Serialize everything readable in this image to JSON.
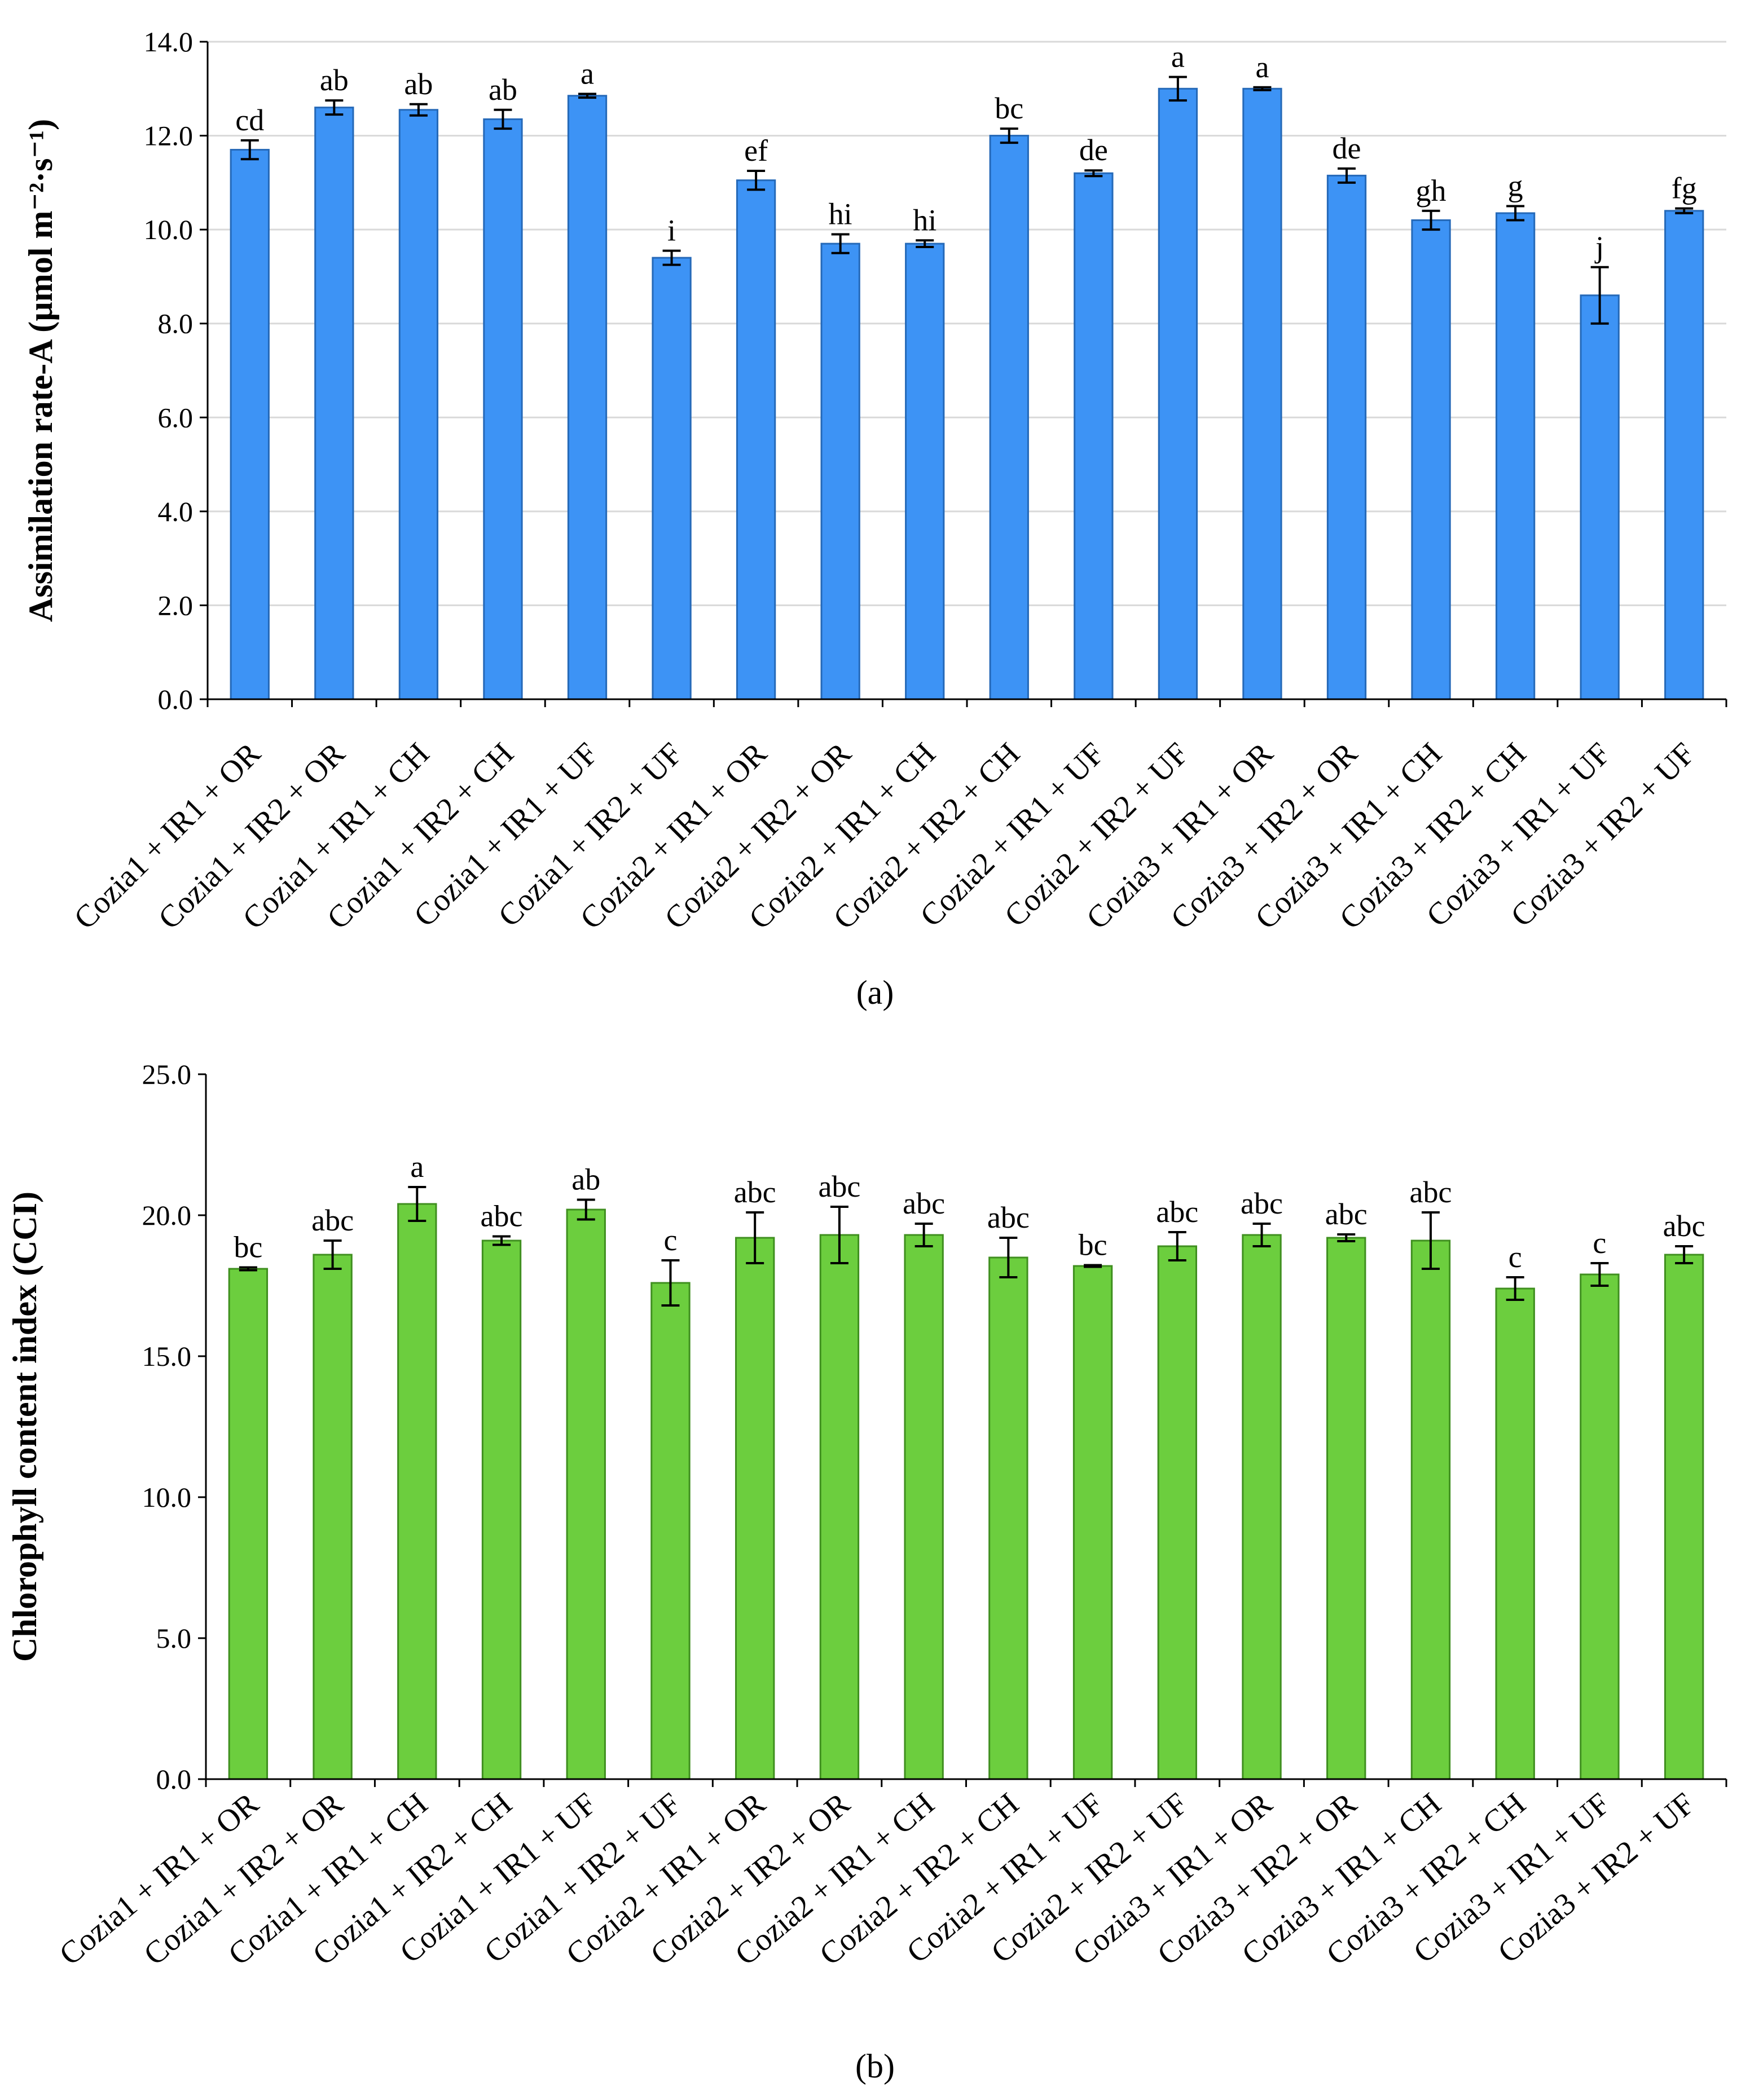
{
  "chart_data": [
    {
      "type": "bar",
      "panel_label": "(a)",
      "title": "",
      "xlabel": "",
      "ylabel": "Assimilation rate-A  (µmol m⁻²·s⁻¹)",
      "ylim": [
        0,
        14
      ],
      "ytick_step": 2,
      "ytick_labels": [
        "0.0",
        "2.0",
        "4.0",
        "6.0",
        "8.0",
        "10.0",
        "12.0",
        "14.0"
      ],
      "grid": true,
      "bar_color": "#3d93f5",
      "bar_edge_color": "#2569b8",
      "categories": [
        "Cozia1 + IR1 + OR",
        "Cozia1 + IR2 + OR",
        "Cozia1 + IR1 + CH",
        "Cozia1 + IR2 + CH",
        "Cozia1 + IR1 + UF",
        "Cozia1 + IR2 + UF",
        "Cozia2 + IR1 + OR",
        "Cozia2 + IR2 + OR",
        "Cozia2 + IR1 + CH",
        "Cozia2 + IR2 + CH",
        "Cozia2 + IR1 + UF",
        "Cozia2 + IR2 + UF",
        "Cozia3 + IR1 + OR",
        "Cozia3 + IR2 + OR",
        "Cozia3 + IR1 + CH",
        "Cozia3 + IR2 + CH",
        "Cozia3 + IR1 + UF",
        "Cozia3 + IR2 + UF"
      ],
      "values": [
        11.7,
        12.6,
        12.55,
        12.35,
        12.85,
        9.4,
        11.05,
        9.7,
        9.7,
        12.0,
        11.2,
        13.0,
        13.0,
        11.15,
        10.2,
        10.35,
        8.6,
        10.4
      ],
      "errors": [
        0.2,
        0.15,
        0.12,
        0.2,
        0.04,
        0.15,
        0.2,
        0.2,
        0.07,
        0.15,
        0.06,
        0.25,
        0.03,
        0.15,
        0.2,
        0.15,
        0.6,
        0.05
      ],
      "letters": [
        "cd",
        "ab",
        "ab",
        "ab",
        "a",
        "i",
        "ef",
        "hi",
        "hi",
        "bc",
        "de",
        "a",
        "a",
        "de",
        "gh",
        "g",
        "j",
        "fg"
      ]
    },
    {
      "type": "bar",
      "panel_label": "(b)",
      "title": "",
      "xlabel": "",
      "ylabel": "Chlorophyll content index (CCI)",
      "ylim": [
        0,
        25
      ],
      "ytick_step": 5,
      "ytick_labels": [
        "0.0",
        "5.0",
        "10.0",
        "15.0",
        "20.0",
        "25.0"
      ],
      "grid": false,
      "bar_color": "#6cce3e",
      "bar_edge_color": "#3f8f1f",
      "categories": [
        "Cozia1 + IR1 + OR",
        "Cozia1 + IR2 + OR",
        "Cozia1 + IR1 + CH",
        "Cozia1 + IR2 + CH",
        "Cozia1 + IR1 + UF",
        "Cozia1 + IR2 + UF",
        "Cozia2 + IR1 + OR",
        "Cozia2 + IR2 + OR",
        "Cozia2 + IR1 + CH",
        "Cozia2 + IR2 + CH",
        "Cozia2 + IR1 + UF",
        "Cozia2 + IR2 + UF",
        "Cozia3 + IR1 + OR",
        "Cozia3 + IR2 + OR",
        "Cozia3 + IR1 + CH",
        "Cozia3 + IR2 + CH",
        "Cozia3 + IR1 + UF",
        "Cozia3 + IR2 + UF"
      ],
      "values": [
        18.1,
        18.6,
        20.4,
        19.1,
        20.2,
        17.6,
        19.2,
        19.3,
        19.3,
        18.5,
        18.2,
        18.9,
        19.3,
        19.2,
        19.1,
        17.4,
        17.9,
        18.6
      ],
      "errors": [
        0.05,
        0.5,
        0.6,
        0.15,
        0.35,
        0.8,
        0.9,
        1.0,
        0.4,
        0.7,
        0.03,
        0.5,
        0.4,
        0.12,
        1.0,
        0.4,
        0.4,
        0.3
      ],
      "letters": [
        "bc",
        "abc",
        "a",
        "abc",
        "ab",
        "c",
        "abc",
        "abc",
        "abc",
        "abc",
        "bc",
        "abc",
        "abc",
        "abc",
        "abc",
        "c",
        "c",
        "abc"
      ]
    }
  ]
}
